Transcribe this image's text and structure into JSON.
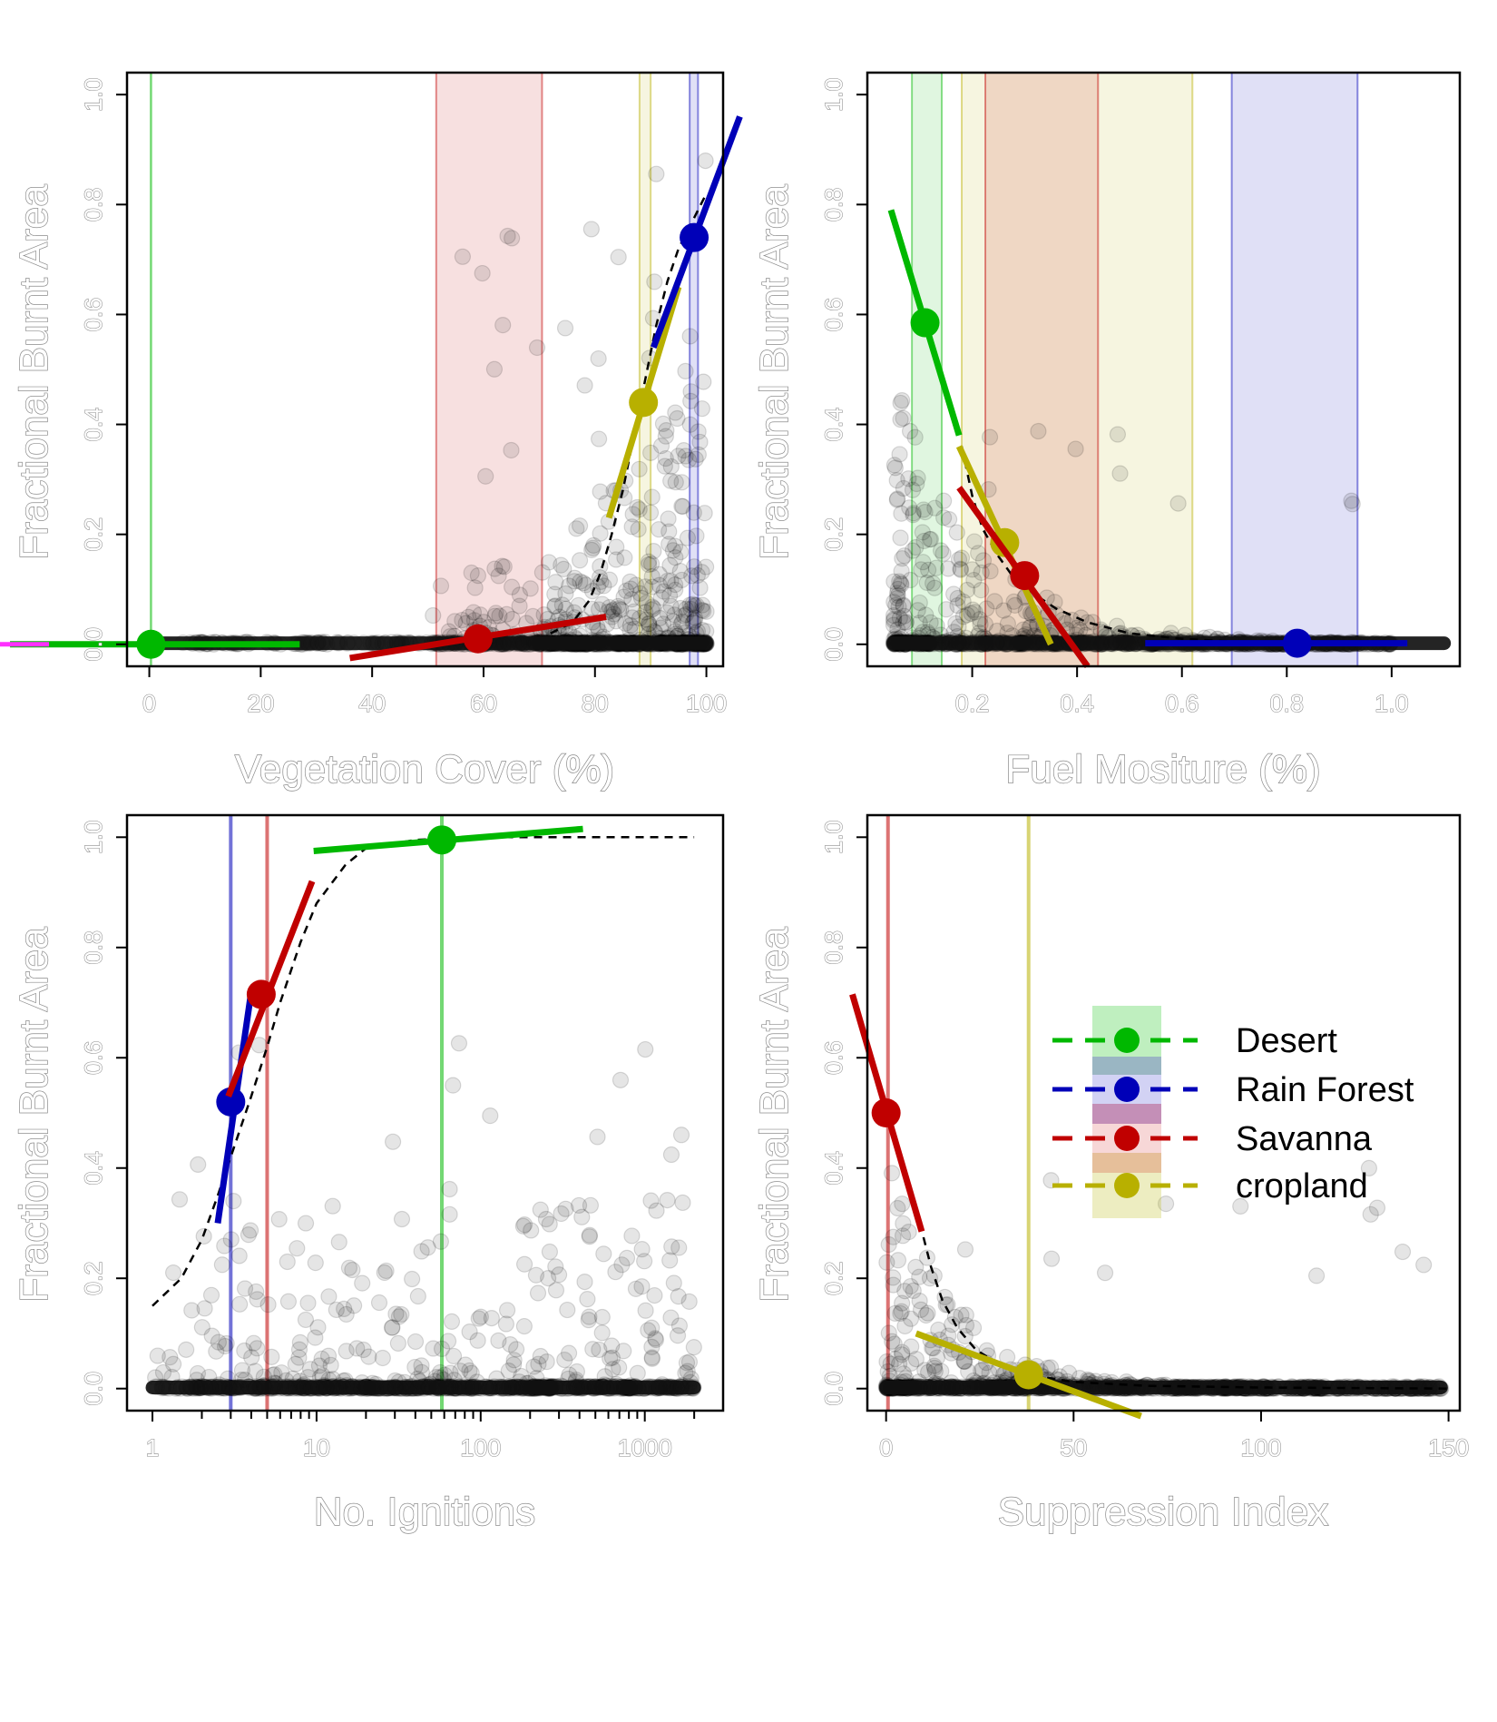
{
  "colors": {
    "desert": "#00b800",
    "rain_forest": "#0000b8",
    "savanna": "#c00000",
    "cropland": "#b8b000",
    "points": "#000000",
    "curve": "#000000",
    "clipped_line": "#ff30ff"
  },
  "legend": {
    "placement": "inside panel 4, upper right",
    "entries": [
      {
        "key": "desert",
        "label": "Desert"
      },
      {
        "key": "rain_forest",
        "label": "Rain Forest"
      },
      {
        "key": "savanna",
        "label": "Savanna"
      },
      {
        "key": "cropland",
        "label": "cropland"
      }
    ]
  },
  "chart_data": [
    {
      "type": "scatter",
      "xlabel": "Vegetation Cover (%)",
      "ylabel": "Fractional Burnt Area",
      "xlim": [
        -4,
        103
      ],
      "ylim": [
        -0.04,
        1.04
      ],
      "xticks": [
        0,
        20,
        40,
        60,
        80,
        100
      ],
      "xtick_labels": [
        "0",
        "20",
        "40",
        "60",
        "80",
        "100"
      ],
      "yticks": [
        0,
        0.2,
        0.4,
        0.6,
        0.8,
        1.0
      ],
      "ytick_labels": [
        "0.0",
        "0.2",
        "0.4",
        "0.6",
        "0.8",
        "1.0"
      ],
      "bands": [
        {
          "key": "savanna",
          "from": 51.5,
          "to": 70.5
        },
        {
          "key": "cropland",
          "from": 88.0,
          "to": 90.0
        },
        {
          "key": "rain_forest",
          "from": 97.0,
          "to": 98.5
        }
      ],
      "vlines": [
        {
          "key": "desert",
          "x": 0.3
        }
      ],
      "curve": [
        [
          72,
          0.02
        ],
        [
          76,
          0.04
        ],
        [
          79,
          0.08
        ],
        [
          81,
          0.13
        ],
        [
          83,
          0.2
        ],
        [
          85,
          0.28
        ],
        [
          87,
          0.38
        ],
        [
          89,
          0.48
        ],
        [
          91,
          0.58
        ],
        [
          93,
          0.66
        ],
        [
          95,
          0.72
        ],
        [
          97,
          0.76
        ],
        [
          100,
          0.82
        ]
      ],
      "tangents": [
        {
          "key": "desert",
          "x": 0.3,
          "y": 0.0,
          "x0": -25,
          "x1": 27,
          "y0": 0.0,
          "y1": 0.0
        },
        {
          "key": "savanna",
          "x": 59,
          "y": 0.01,
          "x0": 36,
          "x1": 82,
          "y0": -0.025,
          "y1": 0.05
        },
        {
          "key": "cropland",
          "x": 88.7,
          "y": 0.44,
          "x0": 82.5,
          "x1": 95,
          "y0": 0.23,
          "y1": 0.65
        },
        {
          "key": "rain_forest",
          "x": 97.8,
          "y": 0.74,
          "x0": 90.5,
          "x1": 106,
          "y0": 0.54,
          "y1": 0.96
        }
      ],
      "scatter_seed": 11
    },
    {
      "type": "scatter",
      "xlabel": "Fuel Mositure (%)",
      "ylabel": "Fractional Burnt Area",
      "xlim": [
        0.0,
        1.13
      ],
      "ylim": [
        -0.04,
        1.04
      ],
      "xticks": [
        0.2,
        0.4,
        0.6,
        0.8,
        1.0
      ],
      "xtick_labels": [
        "0.2",
        "0.4",
        "0.6",
        "0.8",
        "1.0"
      ],
      "yticks": [
        0,
        0.2,
        0.4,
        0.6,
        0.8,
        1.0
      ],
      "ytick_labels": [
        "0.0",
        "0.2",
        "0.4",
        "0.6",
        "0.8",
        "1.0"
      ],
      "bands": [
        {
          "key": "desert",
          "from": 0.085,
          "to": 0.142
        },
        {
          "key": "cropland",
          "from": 0.18,
          "to": 0.62
        },
        {
          "key": "savanna",
          "from": 0.225,
          "to": 0.44
        },
        {
          "key": "rain_forest",
          "from": 0.695,
          "to": 0.935
        }
      ],
      "vlines": [],
      "curve": [
        [
          0.18,
          0.36
        ],
        [
          0.2,
          0.27
        ],
        [
          0.22,
          0.21
        ],
        [
          0.25,
          0.16
        ],
        [
          0.28,
          0.12
        ],
        [
          0.32,
          0.09
        ],
        [
          0.36,
          0.065
        ],
        [
          0.42,
          0.04
        ],
        [
          0.5,
          0.02
        ],
        [
          0.6,
          0.01
        ],
        [
          0.7,
          0.005
        ],
        [
          0.8,
          0.002
        ]
      ],
      "tangents": [
        {
          "key": "desert",
          "x": 0.11,
          "y": 0.585,
          "x0": 0.045,
          "x1": 0.175,
          "y0": 0.79,
          "y1": 0.38
        },
        {
          "key": "cropland",
          "x": 0.262,
          "y": 0.185,
          "x0": 0.175,
          "x1": 0.35,
          "y0": 0.36,
          "y1": 0.0
        },
        {
          "key": "savanna",
          "x": 0.3,
          "y": 0.125,
          "x0": 0.175,
          "x1": 0.42,
          "y0": 0.285,
          "y1": -0.04
        },
        {
          "key": "rain_forest",
          "x": 0.82,
          "y": 0.002,
          "x0": 0.53,
          "x1": 1.03,
          "y0": 0.002,
          "y1": 0.002
        }
      ],
      "scatter_seed": 23
    },
    {
      "type": "scatter",
      "xlabel": "No. Ignitions",
      "ylabel": "Fractional Burnt Area",
      "xscale": "log",
      "xlim": [
        0.7,
        3000
      ],
      "ylim": [
        -0.04,
        1.04
      ],
      "xticks": [
        1,
        10,
        100,
        1000
      ],
      "xtick_labels": [
        "1",
        "10",
        "100",
        "1000"
      ],
      "yticks": [
        0,
        0.2,
        0.4,
        0.6,
        0.8,
        1.0
      ],
      "ytick_labels": [
        "0.0",
        "0.2",
        "0.4",
        "0.6",
        "0.8",
        "1.0"
      ],
      "bands": [],
      "vlines": [
        {
          "key": "rain_forest",
          "x": 3.0
        },
        {
          "key": "savanna",
          "x": 5.0
        },
        {
          "key": "desert",
          "x": 58
        }
      ],
      "curve": [
        [
          1,
          0.15
        ],
        [
          1.5,
          0.2
        ],
        [
          2,
          0.27
        ],
        [
          2.5,
          0.35
        ],
        [
          3,
          0.42
        ],
        [
          4,
          0.53
        ],
        [
          5,
          0.62
        ],
        [
          6,
          0.7
        ],
        [
          8,
          0.81
        ],
        [
          10,
          0.88
        ],
        [
          15,
          0.95
        ],
        [
          20,
          0.98
        ],
        [
          40,
          0.995
        ],
        [
          100,
          1.0
        ],
        [
          2000,
          1.0
        ]
      ],
      "tangents": [
        {
          "key": "rain_forest",
          "x": 3.0,
          "y": 0.52,
          "x0": 2.5,
          "x1": 4,
          "y0": 0.3,
          "y1": 0.72
        },
        {
          "key": "savanna",
          "x": 4.6,
          "y": 0.715,
          "x0": 2.9,
          "x1": 9.4,
          "y0": 0.53,
          "y1": 0.92
        },
        {
          "key": "desert",
          "x": 58,
          "y": 0.995,
          "x0": 9.6,
          "x1": 420,
          "y0": 0.975,
          "y1": 1.015
        }
      ],
      "scatter_seed": 37
    },
    {
      "type": "scatter",
      "xlabel": "Suppression Index",
      "ylabel": "Fractional Burnt Area",
      "xlim": [
        -5,
        153
      ],
      "ylim": [
        -0.04,
        1.04
      ],
      "xticks": [
        0,
        50,
        100,
        150
      ],
      "xtick_labels": [
        "0",
        "50",
        "100",
        "150"
      ],
      "yticks": [
        0,
        0.2,
        0.4,
        0.6,
        0.8,
        1.0
      ],
      "ytick_labels": [
        "0.0",
        "0.2",
        "0.4",
        "0.6",
        "0.8",
        "1.0"
      ],
      "bands": [],
      "vlines": [
        {
          "key": "savanna",
          "x": 0.5
        },
        {
          "key": "cropland",
          "x": 38
        }
      ],
      "curve": [
        [
          9,
          0.3
        ],
        [
          12,
          0.22
        ],
        [
          15,
          0.16
        ],
        [
          19,
          0.11
        ],
        [
          24,
          0.07
        ],
        [
          30,
          0.045
        ],
        [
          38,
          0.025
        ],
        [
          50,
          0.012
        ],
        [
          70,
          0.005
        ],
        [
          100,
          0.002
        ],
        [
          150,
          0.0
        ]
      ],
      "tangents": [
        {
          "key": "savanna",
          "x": 0.0,
          "y": 0.5,
          "x0": -9,
          "x1": 9.5,
          "y0": 0.715,
          "y1": 0.285
        },
        {
          "key": "cropland",
          "x": 38,
          "y": 0.025,
          "x0": 8,
          "x1": 68,
          "y0": 0.1,
          "y1": -0.05
        }
      ],
      "scatter_seed": 53
    }
  ]
}
